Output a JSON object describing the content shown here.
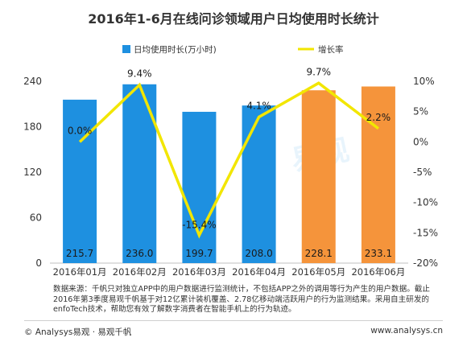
{
  "chart_data": {
    "type": "bar",
    "title": "2016年1-6月在线问诊领域用户日均使用时长统计",
    "categories": [
      "2016年01月",
      "2016年02月",
      "2016年03月",
      "2016年04月",
      "2016年05月",
      "2016年06月"
    ],
    "series": [
      {
        "name": "日均使用时长(万小时)",
        "type": "bar",
        "axis": "left",
        "values": [
          215.7,
          236.0,
          199.7,
          208.0,
          228.1,
          233.1
        ],
        "labels": [
          "215.7",
          "236.0",
          "199.7",
          "208.0",
          "228.1",
          "233.1"
        ],
        "colors": [
          "#1E90E0",
          "#1E90E0",
          "#1E90E0",
          "#1E90E0",
          "#F5943B",
          "#F5943B"
        ]
      },
      {
        "name": "增长率",
        "type": "line",
        "axis": "right",
        "values": [
          0.0,
          9.4,
          -15.4,
          4.1,
          9.7,
          2.2
        ],
        "labels": [
          "0.0%",
          "9.4%",
          "-15.4%",
          "4.1%",
          "9.7%",
          "2.2%"
        ],
        "color": "#F2E600"
      }
    ],
    "y_left": {
      "ylim": [
        0,
        240
      ],
      "ticks": [
        "0",
        "60",
        "120",
        "180",
        "240"
      ]
    },
    "y_right": {
      "ylim": [
        -20,
        10
      ],
      "ticks": [
        "-20%",
        "-15%",
        "-10%",
        "-5%",
        "0%",
        "5%",
        "10%"
      ]
    },
    "legend_position": "top",
    "grid": false
  },
  "watermark": "易观",
  "note": "数据来源：千帆只对独立APP中的用户数据进行监测统计，不包括APP之外的调用等行为产生的用户数据。截止2016年第3季度易观千帆基于对12亿累计装机覆盖、2.78亿移动端活跃用户的行为监测结果。采用自主研发的enfoTech技术，帮助您有效了解数字消费者在智能手机上的行为轨迹。",
  "footer": {
    "left": "© Analysys易观 · 易观千帆",
    "right": "www.analysys.cn"
  }
}
